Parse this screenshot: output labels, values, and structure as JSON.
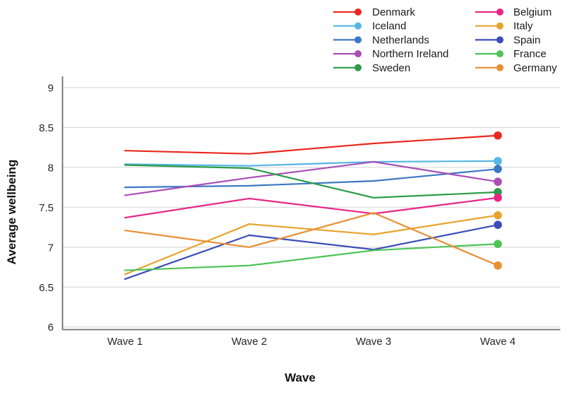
{
  "figure": {
    "background": "#ffffff",
    "grid_color": "#dcdcdc",
    "axis_color": "#6e6e6e",
    "text_color": "#262626"
  },
  "chart_data": {
    "type": "line",
    "title": "",
    "xlabel": "Wave",
    "ylabel": "Average wellbeing",
    "categories": [
      "Wave 1",
      "Wave 2",
      "Wave 3",
      "Wave 4"
    ],
    "ylim": [
      6,
      9
    ],
    "yticks": [
      9,
      8.5,
      8,
      7.5,
      7,
      6.5,
      6
    ],
    "grid": "horizontal",
    "legend_position": "top-right",
    "marker_style": "circle on last point only",
    "series": [
      {
        "name": "Denmark",
        "color": "#e8291f",
        "values": [
          8.21,
          8.17,
          8.3,
          8.4
        ]
      },
      {
        "name": "Iceland",
        "color": "#57b7e4",
        "values": [
          8.04,
          8.02,
          8.07,
          8.08
        ]
      },
      {
        "name": "Netherlands",
        "color": "#3c78c3",
        "values": [
          7.75,
          7.77,
          7.83,
          7.98
        ]
      },
      {
        "name": "Northern Ireland",
        "color": "#a94fb4",
        "values": [
          7.65,
          7.87,
          8.07,
          7.82
        ]
      },
      {
        "name": "Sweden",
        "color": "#2c9c49",
        "values": [
          8.03,
          7.99,
          7.62,
          7.69
        ]
      },
      {
        "name": "Belgium",
        "color": "#e72584",
        "values": [
          7.37,
          7.61,
          7.42,
          7.62
        ]
      },
      {
        "name": "Italy",
        "color": "#e6a42e",
        "values": [
          6.66,
          7.29,
          7.16,
          7.4
        ]
      },
      {
        "name": "Spain",
        "color": "#3c4db8",
        "values": [
          6.6,
          7.15,
          6.97,
          7.28
        ]
      },
      {
        "name": "France",
        "color": "#4ec455",
        "values": [
          6.71,
          6.77,
          6.96,
          7.04
        ]
      },
      {
        "name": "Germany",
        "color": "#e88f35",
        "values": [
          7.21,
          7.0,
          7.43,
          6.77
        ]
      }
    ],
    "legend_columns": [
      [
        "Denmark",
        "Iceland",
        "Netherlands",
        "Northern Ireland",
        "Sweden"
      ],
      [
        "Belgium",
        "Italy",
        "Spain",
        "France",
        "Germany"
      ]
    ]
  }
}
